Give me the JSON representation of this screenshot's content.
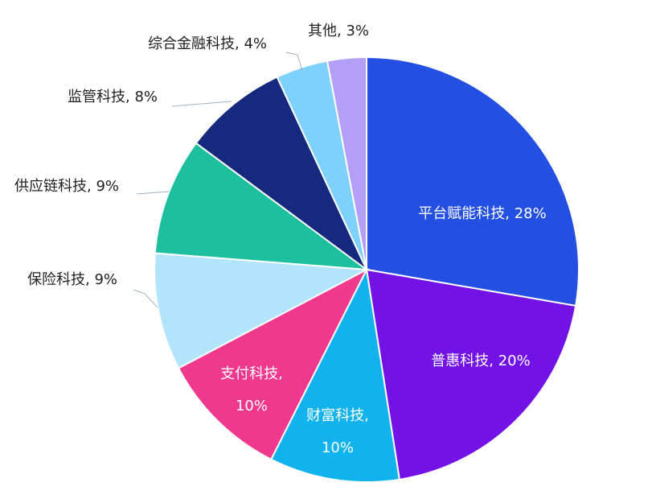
{
  "chart_data": {
    "type": "pie",
    "title": "",
    "slices": [
      {
        "name": "平台赋能科技",
        "value": 28,
        "label": [
          "平台赋能科技, 28%"
        ],
        "color": "#2350e3"
      },
      {
        "name": "普惠科技",
        "value": 20,
        "label": [
          "普惠科技, 20%"
        ],
        "color": "#7312e6"
      },
      {
        "name": "财富科技",
        "value": 10,
        "label": [
          "财富科技,",
          "10%"
        ],
        "color": "#10b3ee"
      },
      {
        "name": "支付科技",
        "value": 10,
        "label": [
          "支付科技,",
          "10%"
        ],
        "color": "#f0388f"
      },
      {
        "name": "保险科技",
        "value": 9,
        "label": [
          "保险科技, 9%"
        ],
        "color": "#b2e5fb"
      },
      {
        "name": "供应链科技",
        "value": 9,
        "label": [
          "供应链科技, 9%"
        ],
        "color": "#1cbf9e"
      },
      {
        "name": "监管科技",
        "value": 8,
        "label": [
          "监管科技, 8%"
        ],
        "color": "#152a7f"
      },
      {
        "name": "综合金融科技",
        "value": 4,
        "label": [
          "综合金融科技, 4%"
        ],
        "color": "#7ed1fb"
      },
      {
        "name": "其他",
        "value": 3,
        "label": [
          "其他, 3%"
        ],
        "color": "#b39ff8"
      }
    ]
  }
}
